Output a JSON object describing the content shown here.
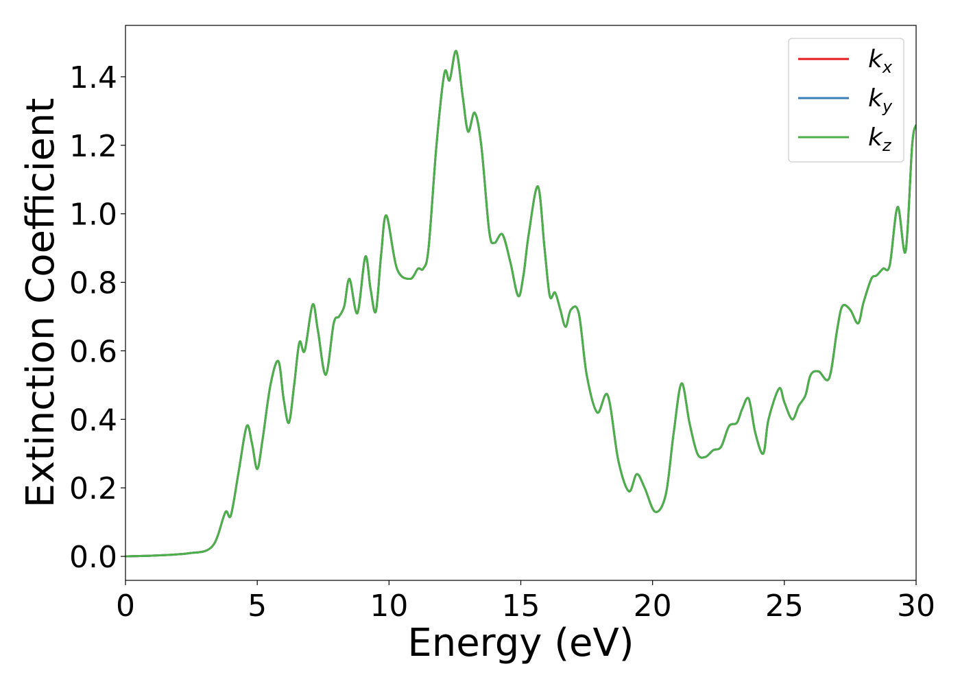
{
  "chart_data": {
    "type": "line",
    "title": "",
    "xlabel": "Energy (eV)",
    "ylabel": "Extinction Coefficient",
    "xlim": [
      0,
      30
    ],
    "ylim": [
      -0.07,
      1.55
    ],
    "xticks": [
      0,
      5,
      10,
      15,
      20,
      25,
      30
    ],
    "xtick_labels": [
      "0",
      "5",
      "10",
      "15",
      "20",
      "25",
      "30"
    ],
    "yticks": [
      0.0,
      0.2,
      0.4,
      0.6,
      0.8,
      1.0,
      1.2,
      1.4
    ],
    "ytick_labels": [
      "0.0",
      "0.2",
      "0.4",
      "0.6",
      "0.8",
      "1.0",
      "1.2",
      "1.4"
    ],
    "grid": false,
    "legend_position": "top-right",
    "legend": [
      {
        "base": "k",
        "sub": "x",
        "color": "#e41a1c"
      },
      {
        "base": "k",
        "sub": "y",
        "color": "#377eb8"
      },
      {
        "base": "k",
        "sub": "z",
        "color": "#4daf4a"
      }
    ],
    "x": [
      0,
      1,
      2,
      2.5,
      3,
      3.3,
      3.5,
      3.8,
      4.0,
      4.3,
      4.6,
      4.8,
      5.0,
      5.2,
      5.5,
      5.8,
      6.0,
      6.2,
      6.4,
      6.6,
      6.8,
      7.1,
      7.3,
      7.6,
      7.9,
      8.1,
      8.3,
      8.5,
      8.8,
      9.1,
      9.3,
      9.5,
      9.7,
      9.9,
      10.3,
      10.8,
      11.1,
      11.3,
      11.5,
      11.8,
      12.1,
      12.3,
      12.55,
      12.8,
      13.0,
      13.25,
      13.5,
      13.8,
      14.0,
      14.3,
      14.6,
      14.9,
      15.1,
      15.3,
      15.65,
      15.9,
      16.1,
      16.3,
      16.5,
      16.7,
      16.9,
      17.2,
      17.5,
      17.9,
      18.3,
      18.7,
      19.1,
      19.4,
      19.7,
      20.1,
      20.5,
      20.8,
      21.1,
      21.4,
      21.7,
      22.0,
      22.3,
      22.6,
      22.9,
      23.2,
      23.4,
      23.65,
      23.9,
      24.2,
      24.4,
      24.8,
      25.0,
      25.3,
      25.55,
      25.8,
      26.0,
      26.3,
      26.7,
      27.0,
      27.2,
      27.5,
      27.8,
      28.0,
      28.3,
      28.5,
      28.75,
      29.0,
      29.3,
      29.6,
      29.85,
      30.0
    ],
    "series": [
      {
        "name": "k_x",
        "color": "#e41a1c",
        "values": [
          0.0,
          0.002,
          0.006,
          0.01,
          0.015,
          0.03,
          0.06,
          0.13,
          0.12,
          0.25,
          0.38,
          0.33,
          0.255,
          0.34,
          0.5,
          0.57,
          0.46,
          0.39,
          0.5,
          0.625,
          0.6,
          0.735,
          0.66,
          0.53,
          0.68,
          0.7,
          0.73,
          0.81,
          0.71,
          0.875,
          0.78,
          0.715,
          0.88,
          0.995,
          0.84,
          0.81,
          0.84,
          0.84,
          0.9,
          1.2,
          1.41,
          1.39,
          1.475,
          1.34,
          1.24,
          1.295,
          1.2,
          0.95,
          0.915,
          0.94,
          0.86,
          0.76,
          0.82,
          0.94,
          1.08,
          0.9,
          0.76,
          0.77,
          0.72,
          0.67,
          0.72,
          0.71,
          0.53,
          0.42,
          0.47,
          0.28,
          0.19,
          0.24,
          0.2,
          0.13,
          0.18,
          0.36,
          0.505,
          0.39,
          0.3,
          0.29,
          0.31,
          0.32,
          0.38,
          0.39,
          0.43,
          0.46,
          0.36,
          0.3,
          0.4,
          0.49,
          0.45,
          0.4,
          0.44,
          0.47,
          0.53,
          0.54,
          0.52,
          0.66,
          0.73,
          0.72,
          0.68,
          0.74,
          0.81,
          0.82,
          0.84,
          0.85,
          1.02,
          0.89,
          1.2,
          1.26
        ]
      },
      {
        "name": "k_y",
        "color": "#377eb8",
        "values": [
          0.0,
          0.002,
          0.006,
          0.01,
          0.015,
          0.03,
          0.06,
          0.13,
          0.12,
          0.25,
          0.38,
          0.33,
          0.255,
          0.34,
          0.5,
          0.57,
          0.46,
          0.39,
          0.5,
          0.625,
          0.6,
          0.735,
          0.66,
          0.53,
          0.68,
          0.7,
          0.73,
          0.81,
          0.71,
          0.875,
          0.78,
          0.715,
          0.88,
          0.995,
          0.84,
          0.81,
          0.84,
          0.84,
          0.9,
          1.2,
          1.41,
          1.39,
          1.475,
          1.34,
          1.24,
          1.295,
          1.2,
          0.95,
          0.915,
          0.94,
          0.86,
          0.76,
          0.82,
          0.94,
          1.08,
          0.9,
          0.76,
          0.77,
          0.72,
          0.67,
          0.72,
          0.71,
          0.53,
          0.42,
          0.47,
          0.28,
          0.19,
          0.24,
          0.2,
          0.13,
          0.18,
          0.36,
          0.505,
          0.39,
          0.3,
          0.29,
          0.31,
          0.32,
          0.38,
          0.39,
          0.43,
          0.46,
          0.36,
          0.3,
          0.4,
          0.49,
          0.45,
          0.4,
          0.44,
          0.47,
          0.53,
          0.54,
          0.52,
          0.66,
          0.73,
          0.72,
          0.68,
          0.74,
          0.81,
          0.82,
          0.84,
          0.85,
          1.02,
          0.89,
          1.2,
          1.26
        ]
      },
      {
        "name": "k_z",
        "color": "#4daf4a",
        "values": [
          0.0,
          0.002,
          0.006,
          0.01,
          0.015,
          0.03,
          0.06,
          0.13,
          0.12,
          0.25,
          0.38,
          0.33,
          0.255,
          0.34,
          0.5,
          0.57,
          0.46,
          0.39,
          0.5,
          0.625,
          0.6,
          0.735,
          0.66,
          0.53,
          0.68,
          0.7,
          0.73,
          0.81,
          0.71,
          0.875,
          0.78,
          0.715,
          0.88,
          0.995,
          0.84,
          0.81,
          0.84,
          0.84,
          0.9,
          1.2,
          1.41,
          1.39,
          1.475,
          1.34,
          1.24,
          1.295,
          1.2,
          0.95,
          0.915,
          0.94,
          0.86,
          0.76,
          0.82,
          0.94,
          1.08,
          0.9,
          0.76,
          0.77,
          0.72,
          0.67,
          0.72,
          0.71,
          0.53,
          0.42,
          0.47,
          0.28,
          0.19,
          0.24,
          0.2,
          0.13,
          0.18,
          0.36,
          0.505,
          0.39,
          0.3,
          0.29,
          0.31,
          0.32,
          0.38,
          0.39,
          0.43,
          0.46,
          0.36,
          0.3,
          0.4,
          0.49,
          0.45,
          0.4,
          0.44,
          0.47,
          0.53,
          0.54,
          0.52,
          0.66,
          0.73,
          0.72,
          0.68,
          0.74,
          0.81,
          0.82,
          0.84,
          0.85,
          1.02,
          0.89,
          1.2,
          1.26
        ]
      }
    ]
  }
}
